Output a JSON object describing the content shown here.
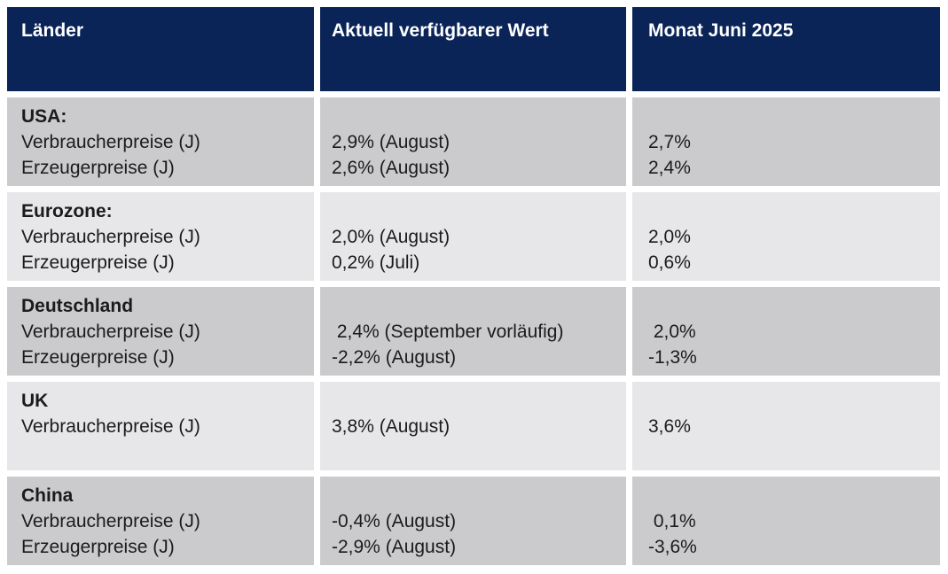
{
  "table": {
    "header": {
      "columns": [
        "Länder",
        "Aktuell verfügbarer Wert",
        "Monat Juni 2025"
      ]
    },
    "rows": [
      {
        "country": "USA:",
        "metrics": [
          "Verbraucherpreise (J)",
          "Erzeugerpreise (J)"
        ],
        "values": [
          "2,9% (August)",
          "2,6% (August)"
        ],
        "monat": [
          "2,7%",
          "2,4%"
        ]
      },
      {
        "country": "Eurozone:",
        "metrics": [
          "Verbraucherpreise (J)",
          "Erzeugerpreise (J)"
        ],
        "values": [
          "2,0% (August)",
          "0,2% (Juli)"
        ],
        "monat": [
          "2,0%",
          "0,6%"
        ]
      },
      {
        "country": "Deutschland",
        "metrics": [
          "Verbraucherpreise (J)",
          "Erzeugerpreise (J)"
        ],
        "values": [
          " 2,4% (September vorläufig)",
          "-2,2% (August)"
        ],
        "monat": [
          " 2,0%",
          "-1,3%"
        ]
      },
      {
        "country": "UK",
        "metrics": [
          "Verbraucherpreise (J)"
        ],
        "values": [
          "3,8% (August)"
        ],
        "monat": [
          "3,6%"
        ]
      },
      {
        "country": "China",
        "metrics": [
          "Verbraucherpreise (J)",
          "Erzeugerpreise (J)"
        ],
        "values": [
          "-0,4% (August)",
          "-2,9% (August)"
        ],
        "monat": [
          " 0,1%",
          "-3,6%"
        ]
      }
    ]
  },
  "colors": {
    "header_bg": "#0a2458",
    "header_text": "#ffffff",
    "row_dark": "#cbcbce",
    "row_light": "#e7e7e9",
    "text": "#1b1b1b",
    "page_bg": "#ffffff"
  }
}
